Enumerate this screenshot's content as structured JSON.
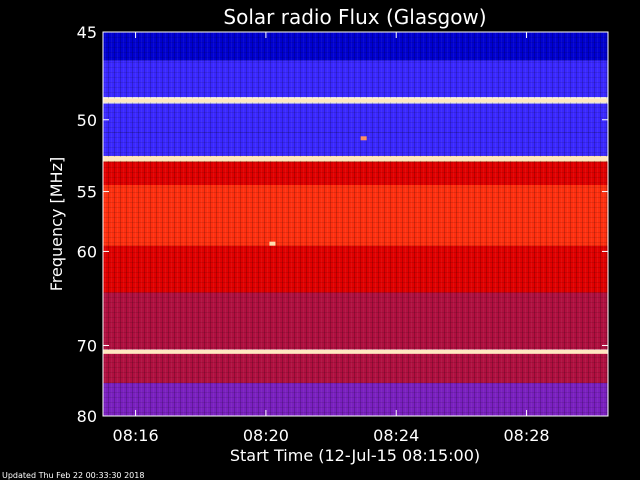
{
  "chart_data": {
    "type": "heatmap",
    "title": "Solar radio Flux (Glasgow)",
    "xlabel": "Start Time (12-Jul-15 08:15:00)",
    "ylabel": "Frequency [MHz]",
    "x_range_minutes": [
      0,
      15.5
    ],
    "x_ticks": [
      {
        "minute": 1,
        "label": "08:16"
      },
      {
        "minute": 5,
        "label": "08:20"
      },
      {
        "minute": 9,
        "label": "08:24"
      },
      {
        "minute": 13,
        "label": "08:28"
      }
    ],
    "y_range_mhz": [
      45,
      80
    ],
    "y_scale": "reciprocal",
    "y_ticks": [
      {
        "mhz": 45,
        "label": "45"
      },
      {
        "mhz": 50,
        "label": "50"
      },
      {
        "mhz": 55,
        "label": "55"
      },
      {
        "mhz": 60,
        "label": "60"
      },
      {
        "mhz": 70,
        "label": "70"
      },
      {
        "mhz": 80,
        "label": "80"
      }
    ],
    "colormap": [
      "#000060",
      "#0000d0",
      "#3a28ff",
      "#7a20c0",
      "#b01040",
      "#e00000",
      "#ff3010",
      "#ff9060",
      "#ffe0b0",
      "#ffffff"
    ],
    "frequency_bands": [
      {
        "from_mhz": 45.0,
        "to_mhz": 46.5,
        "level": 0.1
      },
      {
        "from_mhz": 46.5,
        "to_mhz": 48.6,
        "level": 0.22
      },
      {
        "from_mhz": 48.6,
        "to_mhz": 49.0,
        "level": 0.97
      },
      {
        "from_mhz": 49.0,
        "to_mhz": 50.8,
        "level": 0.25
      },
      {
        "from_mhz": 50.8,
        "to_mhz": 52.4,
        "level": 0.18
      },
      {
        "from_mhz": 52.4,
        "to_mhz": 52.8,
        "level": 0.92
      },
      {
        "from_mhz": 52.8,
        "to_mhz": 54.5,
        "level": 0.52
      },
      {
        "from_mhz": 54.5,
        "to_mhz": 59.5,
        "level": 0.7
      },
      {
        "from_mhz": 59.5,
        "to_mhz": 64.0,
        "level": 0.55
      },
      {
        "from_mhz": 64.0,
        "to_mhz": 70.5,
        "level": 0.45
      },
      {
        "from_mhz": 70.5,
        "to_mhz": 71.0,
        "level": 0.95
      },
      {
        "from_mhz": 71.0,
        "to_mhz": 75.0,
        "level": 0.4
      },
      {
        "from_mhz": 75.0,
        "to_mhz": 80.0,
        "level": 0.28
      }
    ],
    "bright_lines_mhz": [
      48.8,
      52.6,
      70.8
    ],
    "bursts": [
      {
        "minute": 5.2,
        "mhz": 59.3,
        "level": 0.9
      },
      {
        "minute": 8.0,
        "mhz": 51.2,
        "level": 0.8
      }
    ]
  },
  "footer": {
    "updated": "Updated Thu Feb 22 00:33:30 2018"
  }
}
